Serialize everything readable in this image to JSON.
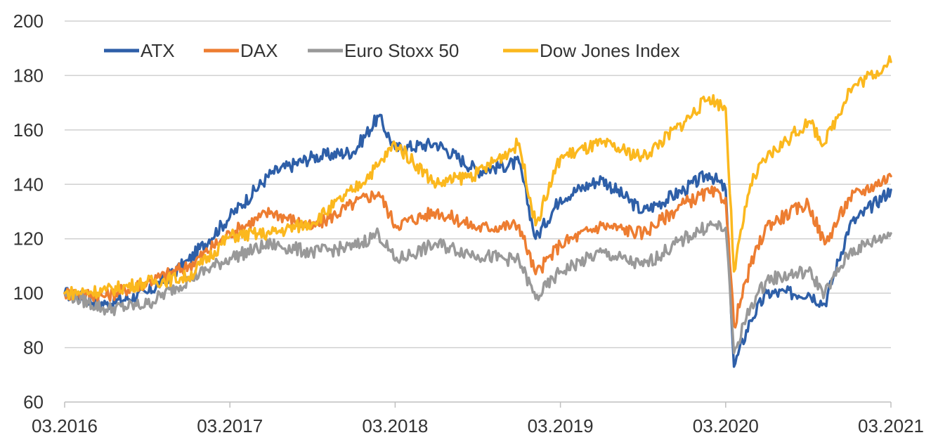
{
  "chart_data": {
    "type": "line",
    "title": "",
    "xlabel": "",
    "ylabel": "",
    "ylim": [
      60,
      200
    ],
    "yticks": [
      60,
      80,
      100,
      120,
      140,
      160,
      180,
      200
    ],
    "xlim": [
      2016.0,
      2021.0
    ],
    "xtick_labels": [
      "03.2016",
      "03.2017",
      "03.2018",
      "03.2019",
      "03.2020",
      "03.2021"
    ],
    "grid": "horizontal",
    "legend_position": "top-left",
    "x": [
      2016.0,
      2016.25,
      2016.5,
      2016.75,
      2017.0,
      2017.25,
      2017.5,
      2017.75,
      2017.9,
      2018.0,
      2018.25,
      2018.5,
      2018.75,
      2018.85,
      2019.0,
      2019.25,
      2019.5,
      2019.75,
      2019.9,
      2020.0,
      2020.05,
      2020.15,
      2020.25,
      2020.5,
      2020.6,
      2020.75,
      2021.0
    ],
    "series": [
      {
        "name": "ATX",
        "color": "#2e5fa8",
        "values": [
          100,
          96,
          100,
          112,
          128,
          144,
          150,
          152,
          165,
          153,
          155,
          145,
          148,
          120,
          135,
          142,
          130,
          138,
          144,
          138,
          73,
          90,
          100,
          100,
          96,
          125,
          138
        ]
      },
      {
        "name": "DAX",
        "color": "#ed7d31",
        "values": [
          100,
          99,
          104,
          110,
          122,
          130,
          124,
          133,
          137,
          125,
          130,
          124,
          125,
          107,
          118,
          125,
          122,
          133,
          137,
          135,
          88,
          110,
          125,
          133,
          118,
          135,
          143
        ]
      },
      {
        "name": "Euro Stoxx 50",
        "color": "#999999",
        "values": [
          100,
          94,
          96,
          105,
          113,
          118,
          115,
          117,
          122,
          112,
          118,
          114,
          112,
          98,
          108,
          115,
          110,
          120,
          125,
          124,
          78,
          95,
          105,
          108,
          100,
          115,
          122
        ]
      },
      {
        "name": "Dow Jones Index",
        "color": "#fbb81e",
        "values": [
          100,
          101,
          104,
          106,
          121,
          122,
          126,
          138,
          147,
          155,
          140,
          144,
          155,
          125,
          150,
          155,
          150,
          163,
          172,
          168,
          108,
          140,
          150,
          163,
          155,
          175,
          185
        ]
      }
    ]
  }
}
